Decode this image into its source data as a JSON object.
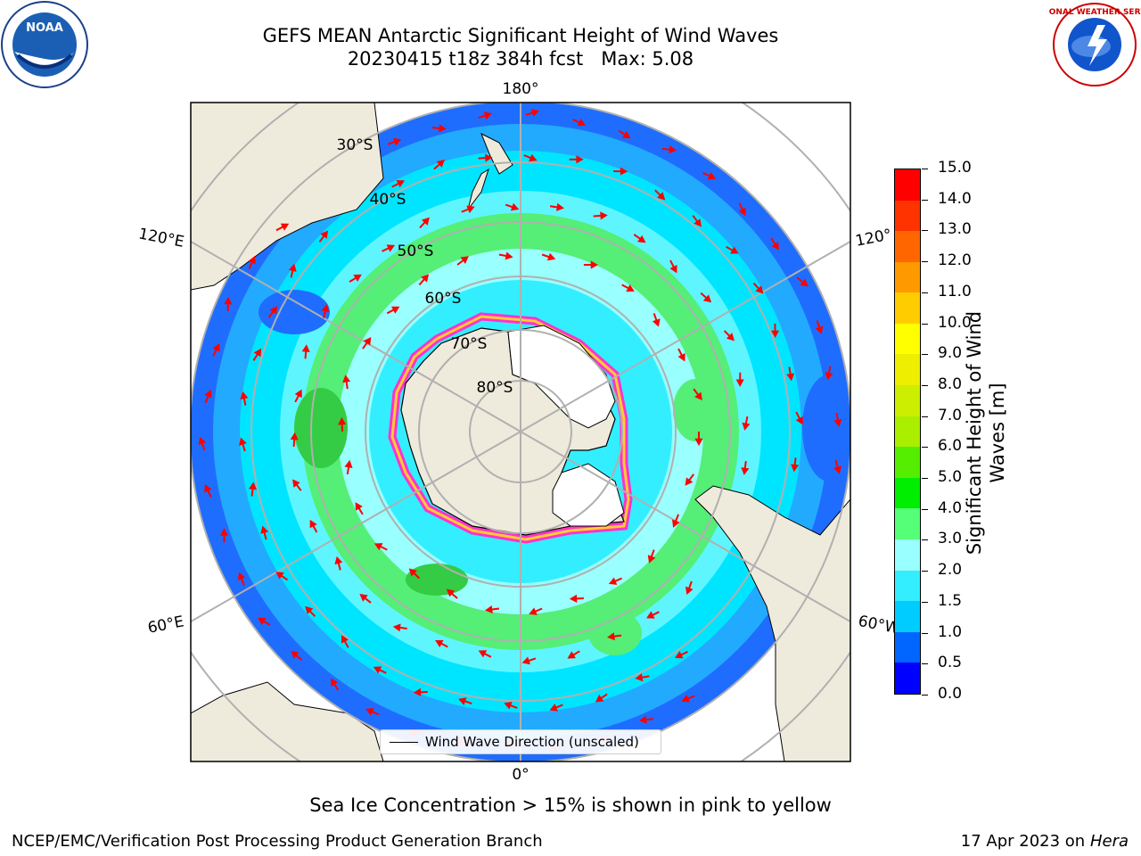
{
  "title_line1": "GEFS MEAN Antarctic Significant Height of Wind Waves",
  "title_line2": "20230415 t18z 384h fcst   Max: 5.08",
  "lon_labels": {
    "top": "180°",
    "left_upper": "120°E",
    "right_upper": "120°",
    "left_lower": "60°E",
    "right_lower": "60°W",
    "bottom": "0°"
  },
  "lat_labels": [
    "30°S",
    "40°S",
    "50°S",
    "60°S",
    "70°S",
    "80°S"
  ],
  "legend_label": "Wind Wave Direction (unscaled)",
  "colorbar": {
    "title_line1": "Significant Height of Wind",
    "title_line2": "Waves [m]",
    "ticks": [
      "0.0",
      "0.5",
      "1.0",
      "1.5",
      "2.0",
      "3.0",
      "4.0",
      "5.0",
      "6.0",
      "7.0",
      "8.0",
      "9.0",
      "10.0",
      "11.0",
      "12.0",
      "13.0",
      "14.0",
      "15.0"
    ],
    "colors": [
      "#0000ff",
      "#0066ff",
      "#00ccff",
      "#33eeff",
      "#99ffff",
      "#55ff77",
      "#00ee00",
      "#55ee00",
      "#aaee00",
      "#ccee00",
      "#eeee00",
      "#ffff00",
      "#ffcc00",
      "#ff9900",
      "#ff6600",
      "#ff3300",
      "#ff0000"
    ]
  },
  "caption": "Sea Ice Concentration > 15% is shown in pink to yellow",
  "footer_left": "NCEP/EMC/Verification Post Processing Product Generation Branch",
  "footer_right_date": "17 Apr 2023 on ",
  "footer_right_machine": "Hera",
  "logos": {
    "noaa": "NOAA",
    "nws": "NATIONAL WEATHER SERVICE"
  }
}
